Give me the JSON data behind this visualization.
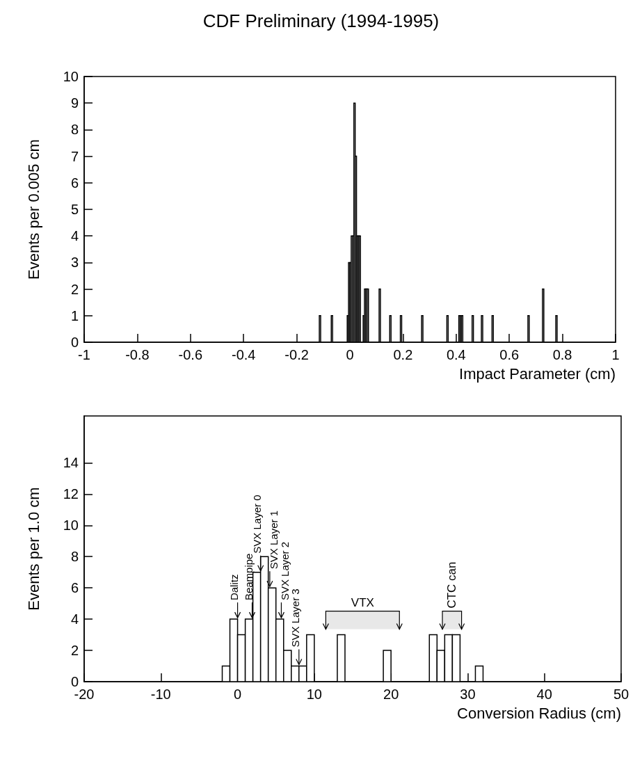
{
  "chart_data": [
    {
      "type": "histogram",
      "title": "CDF Preliminary (1994-1995)",
      "xlabel": "Impact Parameter (cm)",
      "ylabel": "Events per 0.005 cm",
      "color": "#000000",
      "bins": [
        -0.115,
        -0.11,
        -0.07,
        -0.065,
        -0.01,
        -0.005,
        0,
        0.005,
        0.01,
        0.015,
        0.02,
        0.025,
        0.03,
        0.035,
        0.04,
        0.05,
        0.055,
        0.06,
        0.065,
        0.07,
        0.11,
        0.115,
        0.15,
        0.155,
        0.19,
        0.195,
        0.27,
        0.275,
        0.365,
        0.37,
        0.41,
        0.415,
        0.42,
        0.425,
        0.46,
        0.465,
        0.495,
        0.5,
        0.535,
        0.54,
        0.67,
        0.675,
        0.725,
        0.73,
        0.775,
        0.78
      ],
      "values": [
        1,
        0,
        1,
        0,
        1,
        3,
        3,
        4,
        4,
        9,
        7,
        4,
        4,
        4,
        0,
        1,
        2,
        2,
        2,
        0,
        2,
        0,
        1,
        0,
        1,
        0,
        1,
        0,
        1,
        0,
        1,
        1,
        1,
        0,
        1,
        0,
        1,
        0,
        1,
        0,
        1,
        0,
        2,
        0,
        1
      ],
      "xlim": [
        -1,
        1
      ],
      "xticks": [
        -1,
        -0.8,
        -0.6,
        -0.4,
        -0.2,
        0,
        0.2,
        0.4,
        0.6,
        0.8,
        1
      ],
      "ylim": [
        0,
        10
      ],
      "yticks": [
        0,
        1,
        2,
        3,
        4,
        5,
        6,
        7,
        8,
        9,
        10
      ]
    },
    {
      "type": "histogram",
      "xlabel": "Conversion Radius (cm)",
      "ylabel": "Events per 1.0 cm",
      "color": "#000000",
      "bins": [
        -2,
        -1,
        0,
        1,
        2,
        3,
        4,
        5,
        6,
        7,
        8,
        9,
        10,
        13,
        14,
        19,
        20,
        25,
        26,
        27,
        28,
        29,
        31,
        32
      ],
      "values": [
        1,
        4,
        3,
        4,
        7,
        8,
        6,
        4,
        2,
        1,
        1,
        3,
        0,
        3,
        0,
        2,
        0,
        3,
        2,
        3,
        3,
        0,
        1
      ],
      "xlim": [
        -20,
        50
      ],
      "xticks": [
        -20,
        -10,
        0,
        10,
        20,
        30,
        40,
        50
      ],
      "ylim": [
        0,
        17
      ],
      "yticks": [
        0,
        2,
        4,
        6,
        8,
        10,
        12,
        14
      ],
      "annotations": [
        {
          "text": "Dalitz",
          "x": 0,
          "y": 4
        },
        {
          "text": "Beampipe",
          "x": 1.9,
          "y": 4
        },
        {
          "text": "SVX Layer 0",
          "x": 3,
          "y": 7
        },
        {
          "text": "SVX Layer 1",
          "x": 4.2,
          "y": 6
        },
        {
          "text": "SVX Layer 2",
          "x": 5.7,
          "y": 4
        },
        {
          "text": "SVX Layer 3",
          "x": 8,
          "y": 1
        }
      ],
      "bands": [
        {
          "axis": "x",
          "from": 11.5,
          "to": 21.1,
          "label": "VTX"
        },
        {
          "axis": "x",
          "from": 26.7,
          "to": 29.2,
          "label": "CTC can"
        }
      ]
    }
  ]
}
